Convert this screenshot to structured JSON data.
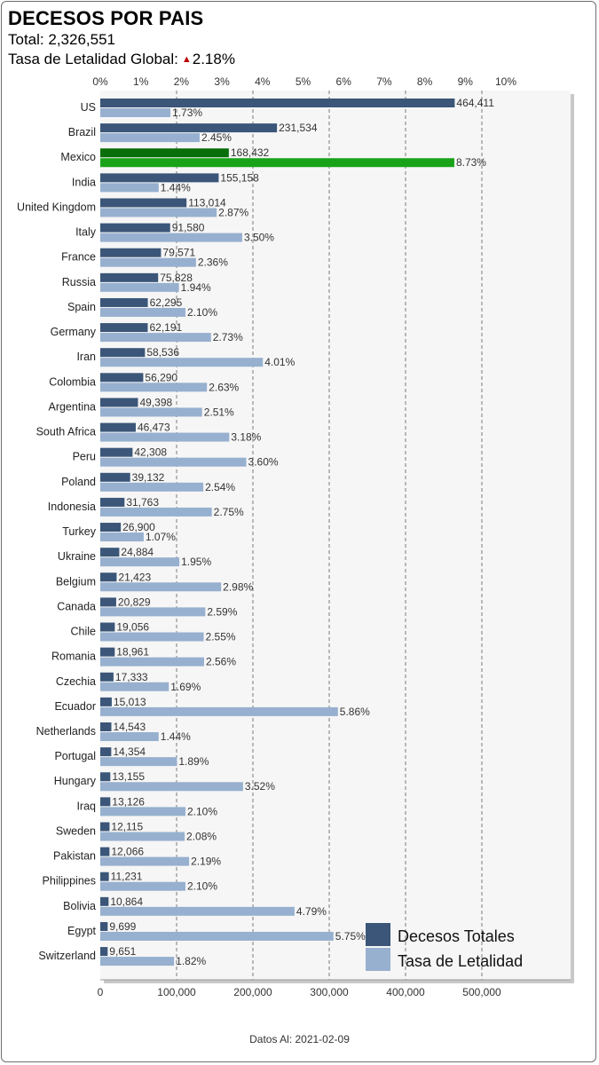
{
  "header": {
    "title": "DECESOS POR PAIS",
    "total_label": "Total:",
    "total_value": "2,326,551",
    "rate_label": "Tasa de Letalidad Global:",
    "rate_value": "2.18%",
    "rate_trend_icon": "up-triangle-icon"
  },
  "footer": {
    "text": "Datos Al: 2021-02-09"
  },
  "colors": {
    "deaths": "#3b5678",
    "rate": "#97b0cf",
    "highlight_deaths": "#0a6e0a",
    "highlight_rate": "#19a319",
    "plot_bg": "#f6f6f6"
  },
  "chart_data": {
    "type": "bar",
    "orientation": "horizontal",
    "categories": [
      "US",
      "Brazil",
      "Mexico",
      "India",
      "United Kingdom",
      "Italy",
      "France",
      "Russia",
      "Spain",
      "Germany",
      "Iran",
      "Colombia",
      "Argentina",
      "South Africa",
      "Peru",
      "Poland",
      "Indonesia",
      "Turkey",
      "Ukraine",
      "Belgium",
      "Canada",
      "Chile",
      "Romania",
      "Czechia",
      "Ecuador",
      "Netherlands",
      "Portugal",
      "Hungary",
      "Iraq",
      "Sweden",
      "Pakistan",
      "Philippines",
      "Bolivia",
      "Egypt",
      "Switzerland"
    ],
    "highlight_category": "Mexico",
    "series": [
      {
        "name": "Decesos Totales",
        "axis": "bottom",
        "values": [
          464411,
          231534,
          168432,
          155158,
          113014,
          91580,
          79571,
          75828,
          62295,
          62191,
          58536,
          56290,
          49398,
          46473,
          42308,
          39132,
          31763,
          26900,
          24884,
          21423,
          20829,
          19056,
          18961,
          17333,
          15013,
          14543,
          14354,
          13155,
          13126,
          12115,
          12066,
          11231,
          10864,
          9699,
          9651
        ],
        "labels": [
          "464,411",
          "231,534",
          "168,432",
          "155,158",
          "113,014",
          "91,580",
          "79,571",
          "75,828",
          "62,295",
          "62,191",
          "58,536",
          "56,290",
          "49,398",
          "46,473",
          "42,308",
          "39,132",
          "31,763",
          "26,900",
          "24,884",
          "21,423",
          "20,829",
          "19,056",
          "18,961",
          "17,333",
          "15,013",
          "14,543",
          "14,354",
          "13,155",
          "13,126",
          "12,115",
          "12,066",
          "11,231",
          "10,864",
          "9,699",
          "9,651"
        ]
      },
      {
        "name": "Tasa de Letalidad",
        "axis": "top",
        "values": [
          1.73,
          2.45,
          8.73,
          1.44,
          2.87,
          3.5,
          2.36,
          1.94,
          2.1,
          2.73,
          4.01,
          2.63,
          2.51,
          3.18,
          3.6,
          2.54,
          2.75,
          1.07,
          1.95,
          2.98,
          2.59,
          2.55,
          2.56,
          1.69,
          5.86,
          1.44,
          1.89,
          3.52,
          2.1,
          2.08,
          2.19,
          2.1,
          4.79,
          5.75,
          1.82
        ],
        "labels": [
          "1.73%",
          "2.45%",
          "8.73%",
          "1.44%",
          "2.87%",
          "3.50%",
          "2.36%",
          "1.94%",
          "2.10%",
          "2.73%",
          "4.01%",
          "2.63%",
          "2.51%",
          "3.18%",
          "3.60%",
          "2.54%",
          "2.75%",
          "1.07%",
          "1.95%",
          "2.98%",
          "2.59%",
          "2.55%",
          "2.56%",
          "1.69%",
          "5.86%",
          "1.44%",
          "1.89%",
          "3.52%",
          "2.10%",
          "2.08%",
          "2.19%",
          "2.10%",
          "4.79%",
          "5.75%",
          "1.82%"
        ]
      }
    ],
    "x_bottom": {
      "range": [
        0,
        620000
      ],
      "ticks": [
        0,
        100000,
        200000,
        300000,
        400000,
        500000
      ],
      "tick_labels": [
        "0",
        "100,000",
        "200,000",
        "300,000",
        "400,000",
        "500,000"
      ]
    },
    "x_top": {
      "range": [
        0,
        10
      ],
      "ticks": [
        0,
        1,
        2,
        3,
        4,
        5,
        6,
        7,
        8,
        9,
        10
      ],
      "tick_labels": [
        "0%",
        "1%",
        "2%",
        "3%",
        "4%",
        "5%",
        "6%",
        "7%",
        "8%",
        "9%",
        "10%"
      ]
    },
    "gridlines": "dashed vertical at bottom-axis ticks",
    "legend": {
      "placement": "bottom-right",
      "items": [
        "Decesos Totales",
        "Tasa de Letalidad"
      ]
    }
  }
}
